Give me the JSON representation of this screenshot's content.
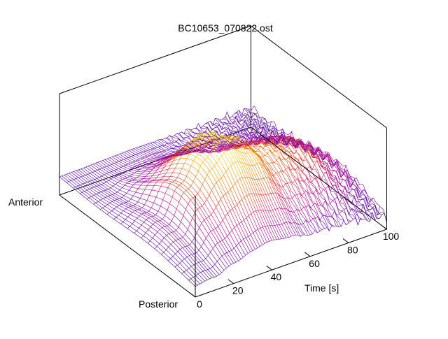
{
  "chart_data": {
    "type": "surface",
    "title": "BC10653_070822.ost",
    "xlabel": "Time [s]",
    "ylabel_anterior": "Anterior",
    "ylabel_posterior": "Posterior",
    "xlim": [
      0,
      100
    ],
    "xticks": [
      "0",
      "20",
      "40",
      "60",
      "80",
      "100"
    ],
    "palette": [
      "#000000",
      "#5a00a8",
      "#b0008f",
      "#e3411f",
      "#f5a700",
      "#ffff40"
    ],
    "surface_profile": {
      "t": [
        0,
        10,
        20,
        30,
        40,
        50,
        60,
        70,
        80,
        90,
        100
      ],
      "peak_height": [
        0.18,
        0.3,
        0.55,
        0.82,
        0.95,
        0.82,
        0.66,
        0.62,
        0.58,
        0.45,
        0.28
      ]
    }
  }
}
